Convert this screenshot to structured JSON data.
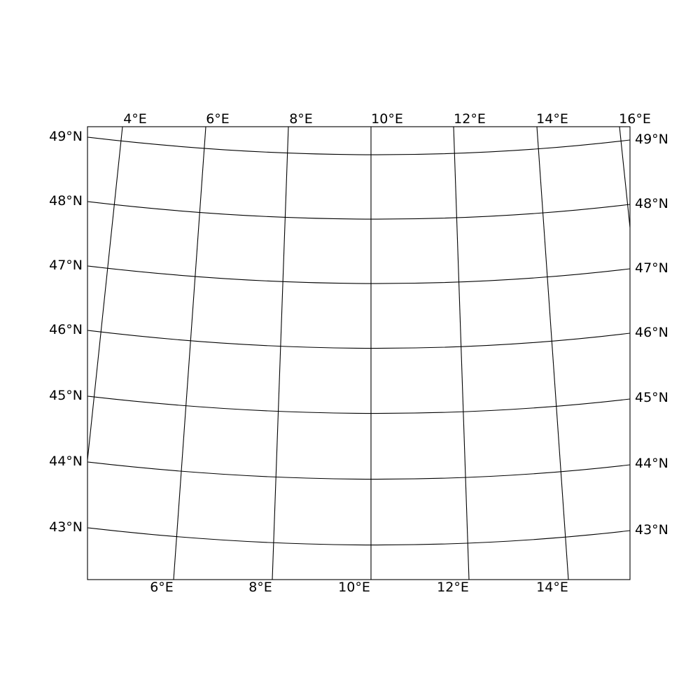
{
  "map": {
    "projection": "conic",
    "central_meridian": "10°E",
    "graticule": {
      "meridians": [
        "4°E",
        "6°E",
        "8°E",
        "10°E",
        "12°E",
        "14°E",
        "16°E"
      ],
      "parallels": [
        "43°N",
        "44°N",
        "45°N",
        "46°N",
        "47°N",
        "48°N",
        "49°N"
      ]
    },
    "labels": {
      "top": [
        "4°E",
        "6°E",
        "8°E",
        "10°E",
        "12°E",
        "16°E",
        "14°E"
      ],
      "bottom": [
        "6°E",
        "8°E",
        "10°E",
        "12°E",
        "14°E"
      ],
      "left": [
        "49°N",
        "48°N",
        "47°N",
        "46°N",
        "45°N",
        "44°N",
        "43°N"
      ],
      "right": [
        "49°N",
        "48°N",
        "47°N",
        "46°N",
        "45°N",
        "44°N",
        "43°N"
      ]
    },
    "line_color": "#000000",
    "background": "#ffffff"
  }
}
